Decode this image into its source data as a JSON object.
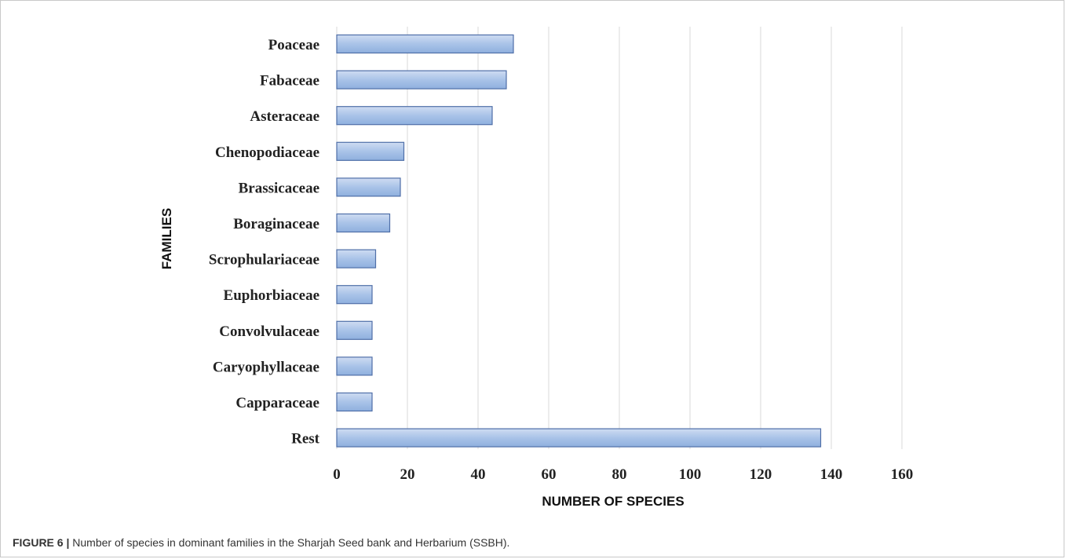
{
  "chart_data": {
    "type": "bar",
    "orientation": "horizontal",
    "categories": [
      "Poaceae",
      "Fabaceae",
      "Asteraceae",
      "Chenopodiaceae",
      "Brassicaceae",
      "Boraginaceae",
      "Scrophulariaceae",
      "Euphorbiaceae",
      "Convolvulaceae",
      "Caryophyllaceae",
      "Capparaceae",
      "Rest"
    ],
    "values": [
      50,
      48,
      44,
      19,
      18,
      15,
      11,
      10,
      10,
      10,
      10,
      137
    ],
    "xlabel": "NUMBER OF SPECIES",
    "ylabel": "FAMILIES",
    "xlim": [
      0,
      160
    ],
    "xticks": [
      "0",
      "20",
      "40",
      "60",
      "80",
      "100",
      "120",
      "140",
      "160"
    ],
    "grid": true,
    "legend": "none",
    "bar_color": "#a9c3e8",
    "bar_edge_color": "#4f6fa8"
  },
  "caption": {
    "label": "FIGURE 6 |",
    "text": " Number of species in dominant families in the Sharjah Seed bank and Herbarium (SSBH)."
  }
}
